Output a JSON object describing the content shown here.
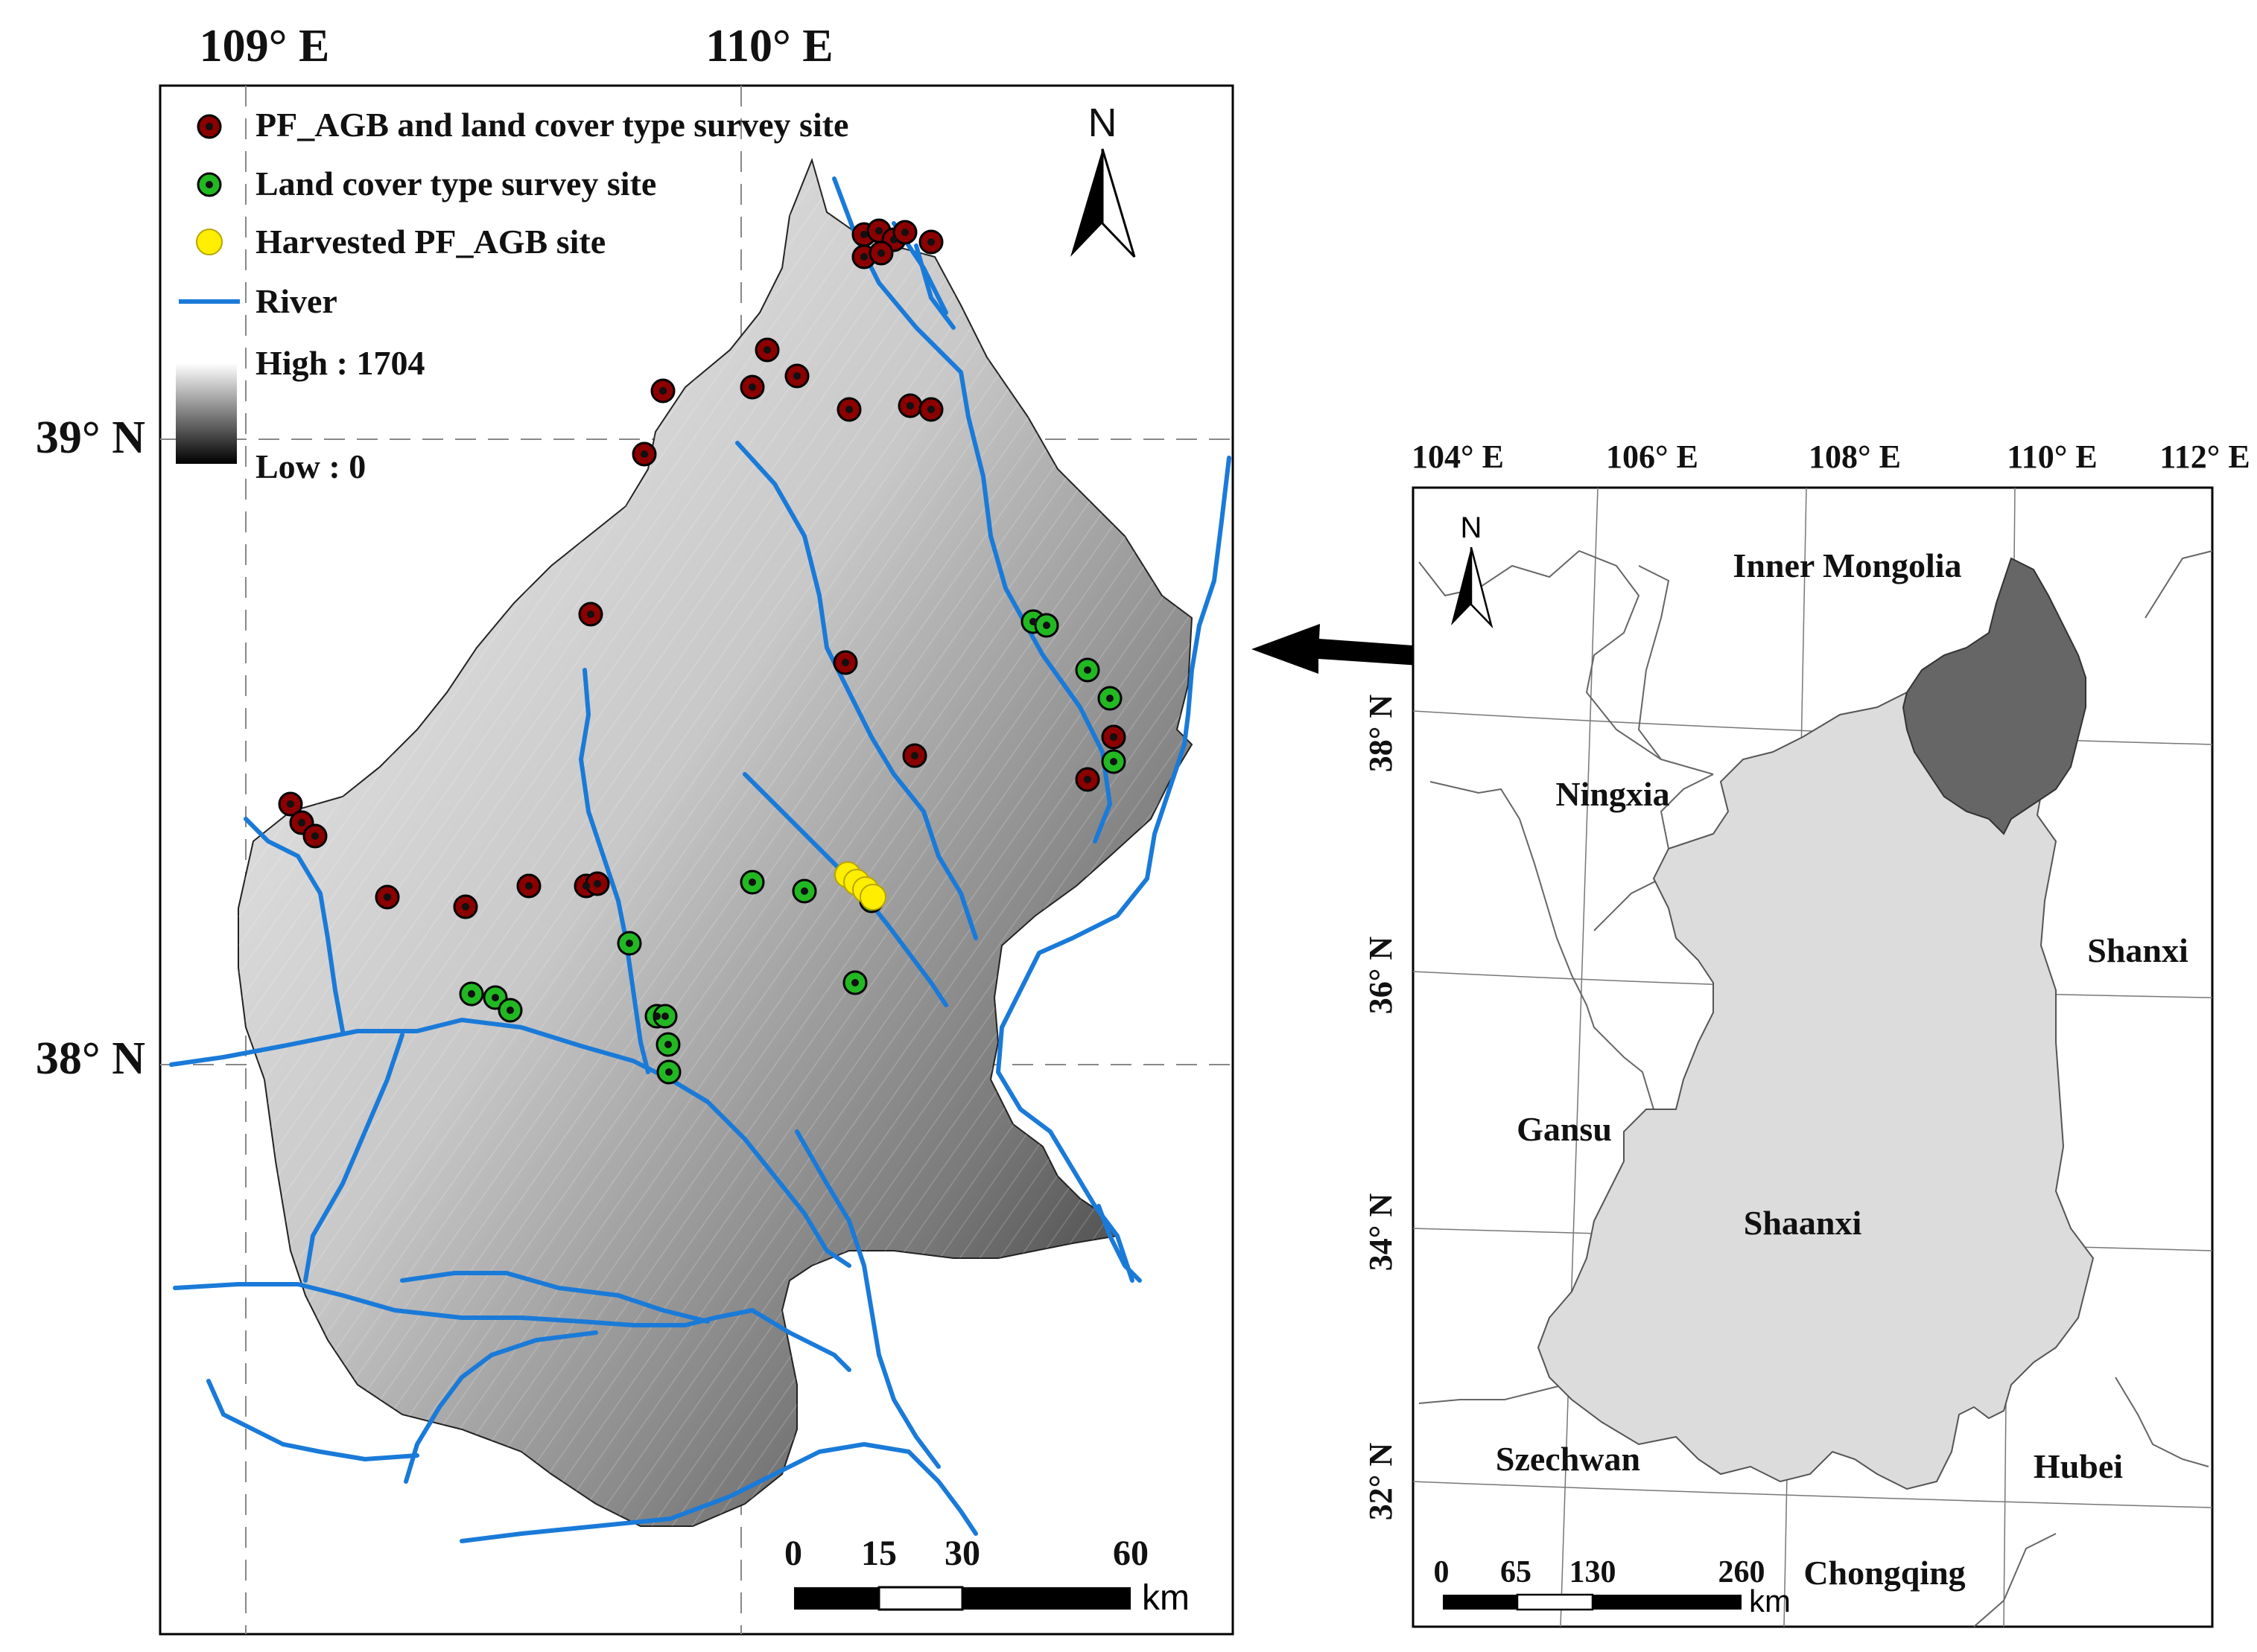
{
  "main_map": {
    "top_lon_labels": [
      "109° E",
      "110° E"
    ],
    "left_lat_labels": [
      "39° N",
      "38° N"
    ],
    "legend": {
      "items": [
        {
          "label": "PF_AGB and land cover type survey site",
          "symbol": "red-dot",
          "color": "#8b0000"
        },
        {
          "label": "Land cover type survey site",
          "symbol": "green-dot",
          "color": "#22b822"
        },
        {
          "label": "Harvested PF_AGB site",
          "symbol": "yellow-dot",
          "color": "#ffee00"
        },
        {
          "label": "River",
          "symbol": "line",
          "color": "#1a7ad8"
        }
      ],
      "elevation_high": "High : 1704",
      "elevation_low": "Low : 0"
    },
    "north_label": "N",
    "scale": {
      "ticks": [
        "0",
        "15",
        "30",
        "60"
      ],
      "unit": "km"
    }
  },
  "inset_map": {
    "top_lon_labels": [
      "104° E",
      "106° E",
      "108° E",
      "110° E",
      "112° E"
    ],
    "left_lat_labels": [
      "38° N",
      "36° N",
      "34° N",
      "32° N"
    ],
    "north_label": "N",
    "regions": [
      "Inner Mongolia",
      "Ningxia",
      "Shanxi",
      "Gansu",
      "Shaanxi",
      "Szechwan",
      "Hubei",
      "Chongqing"
    ],
    "colors": {
      "shaanxi": "#dcdcdc",
      "study_area": "#666666"
    },
    "scale": {
      "ticks": [
        "0",
        "65",
        "130",
        "260"
      ],
      "unit": "km"
    }
  }
}
